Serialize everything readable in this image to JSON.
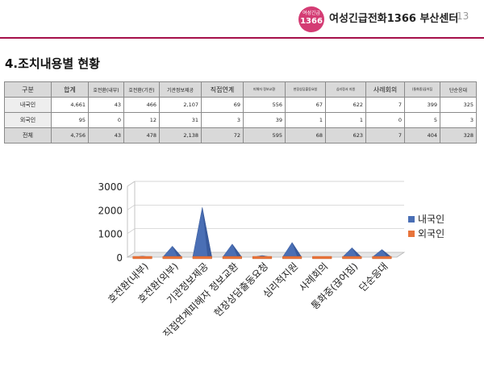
{
  "header": {
    "logo_top": "여성긴급",
    "logo_num": "1366",
    "center_name": "여성긴급전화1366 부산센터",
    "page_number": "13",
    "accent_color": "#a50f4a"
  },
  "page_title": "4.조치내용별 현황",
  "table": {
    "headers": [
      "구분",
      "합계",
      "호전환(내부)",
      "호전환(기관)",
      "기관정보제공",
      "직접연계",
      "피해자 정보교환",
      "현장상담출동요청",
      "심리정서 지원",
      "사례회의",
      "(통화중)끊어짐",
      "단순응대"
    ],
    "rows": [
      {
        "label": "내국인",
        "values": [
          "4,661",
          "43",
          "466",
          "2,107",
          "69",
          "556",
          "67",
          "622",
          "7",
          "399",
          "325"
        ]
      },
      {
        "label": "외국인",
        "values": [
          "95",
          "0",
          "12",
          "31",
          "3",
          "39",
          "1",
          "1",
          "0",
          "5",
          "3"
        ]
      },
      {
        "label": "전체",
        "values": [
          "4,756",
          "43",
          "478",
          "2,138",
          "72",
          "595",
          "68",
          "623",
          "7",
          "404",
          "328"
        ]
      }
    ]
  },
  "chart_data": {
    "type": "area",
    "categories": [
      "호전환(내부)",
      "호전환(외부)",
      "기관정보제공",
      "직접연계피해자 정보교환",
      "현장상담출동요청",
      "심리적지원",
      "사례회의",
      "통화중(끊어짐)",
      "단순응대"
    ],
    "series": [
      {
        "name": "내국인",
        "values": [
          43,
          466,
          2107,
          556,
          67,
          622,
          7,
          399,
          325
        ],
        "color": "#4a6fb5"
      },
      {
        "name": "외국인",
        "values": [
          0,
          12,
          31,
          39,
          1,
          1,
          0,
          5,
          3
        ],
        "color": "#e8743b"
      }
    ],
    "ylim": [
      0,
      3000
    ],
    "yticks": [
      "0",
      "1000",
      "2000",
      "3000"
    ],
    "legend_position": "right",
    "style": "3d-cone"
  }
}
